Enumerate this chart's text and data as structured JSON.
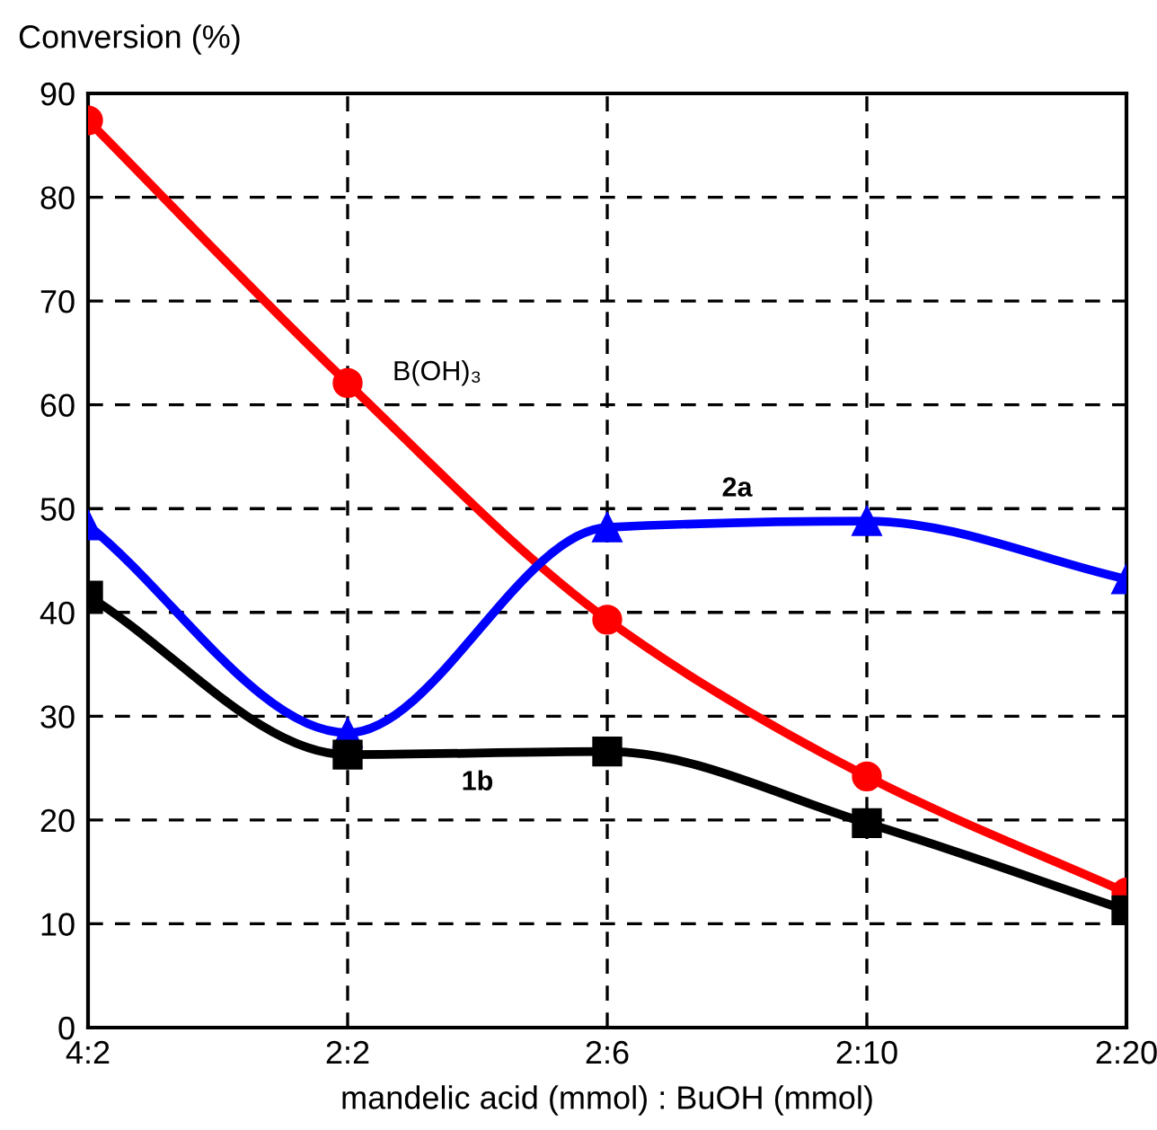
{
  "chart_data": {
    "type": "line",
    "xlabel": "mandelic acid (mmol) : BuOH (mmol)",
    "ylabel": "Conversion (%)",
    "categories": [
      "4:2",
      "2:2",
      "2:6",
      "2:10",
      "2:20"
    ],
    "ylim": [
      0,
      90
    ],
    "yticks": [
      0,
      10,
      20,
      30,
      40,
      50,
      60,
      70,
      80,
      90
    ],
    "grid": true,
    "line_style": "solid",
    "series": [
      {
        "name": "B(OH)₃",
        "color": "#ff0000",
        "marker": "circle",
        "values": [
          87.4,
          62.1,
          39.3,
          24.2,
          13.0
        ]
      },
      {
        "name": "2a",
        "color": "#0000ff",
        "marker": "triangle",
        "values": [
          48.4,
          28.4,
          48.2,
          48.8,
          43.2
        ]
      },
      {
        "name": "1b",
        "color": "#000000",
        "marker": "square",
        "values": [
          41.6,
          26.3,
          26.6,
          19.7,
          11.3
        ]
      }
    ]
  }
}
